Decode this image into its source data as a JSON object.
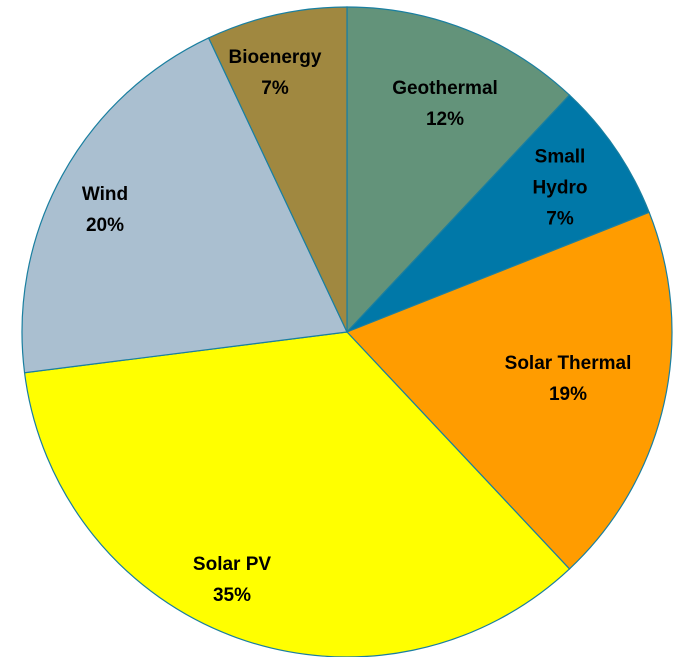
{
  "chart_data": {
    "type": "pie",
    "categories": [
      "Geothermal",
      "Small Hydro",
      "Solar Thermal",
      "Solar PV",
      "Wind",
      "Bioenergy"
    ],
    "values": [
      12,
      7,
      19,
      35,
      20,
      7
    ],
    "value_labels": [
      "12%",
      "7%",
      "19%",
      "35%",
      "20%",
      "7%"
    ],
    "colors": [
      "#63937a",
      "#0078a8",
      "#ff9c00",
      "#ffff00",
      "#aabfd0",
      "#a08840"
    ],
    "start_angle": 0,
    "direction": "clockwise"
  }
}
